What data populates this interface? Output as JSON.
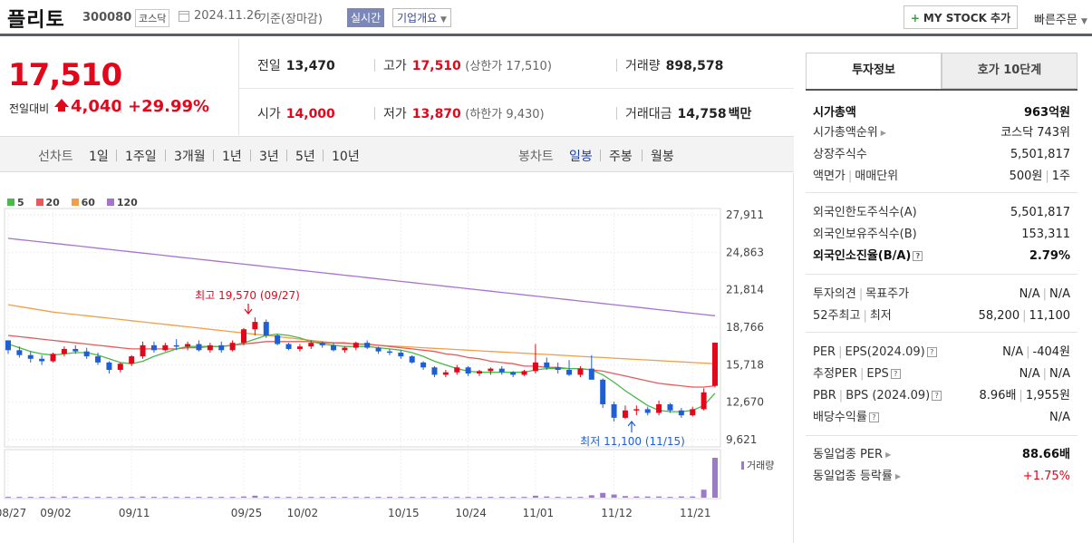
{
  "header": {
    "name": "플리토",
    "code": "300080",
    "market": "코스닥",
    "date": "2024.11.26",
    "basis": "기준(장마감)",
    "realtime_label": "실시간",
    "company_label": "기업개요",
    "mystock_label": "MY STOCK 추가",
    "quick_order_label": "빠른주문"
  },
  "price": {
    "current": "17,510",
    "change_label": "전일대비",
    "change": "4,040",
    "change_rate": "+29.99%",
    "up_color": "#e2071b"
  },
  "quote": {
    "prev_close_label": "전일",
    "prev_close": "13,470",
    "high_label": "고가",
    "high": "17,510",
    "upper_limit": "(상한가 17,510)",
    "volume_label": "거래량",
    "volume": "898,578",
    "open_label": "시가",
    "open": "14,000",
    "low_label": "저가",
    "low": "13,870",
    "lower_limit": "(하한가 9,430)",
    "amount_label": "거래대금",
    "amount": "14,758",
    "amount_unit": "백만"
  },
  "toolbar": {
    "line_label": "선차트",
    "periods": [
      "1일",
      "1주일",
      "3개월",
      "1년",
      "3년",
      "5년",
      "10년"
    ],
    "candle_label": "봉차트",
    "candle_types": [
      "일봉",
      "주봉",
      "월봉"
    ],
    "active_candle": "일봉"
  },
  "legend": [
    {
      "label": "5",
      "color": "#4ab84a"
    },
    {
      "label": "20",
      "color": "#e85a5a"
    },
    {
      "label": "60",
      "color": "#f0a04a"
    },
    {
      "label": "120",
      "color": "#a873cf"
    }
  ],
  "chart_data": {
    "type": "candlestick",
    "y_ticks": [
      "27,911",
      "24,863",
      "21,814",
      "18,766",
      "15,718",
      "12,670",
      "9,621"
    ],
    "ylim": [
      9621,
      27911
    ],
    "x_ticks": [
      "08/27",
      "09/02",
      "09/11",
      "09/25",
      "10/02",
      "10/15",
      "10/24",
      "11/01",
      "11/12",
      "11/21"
    ],
    "annotations": {
      "high_text": "최고 19,570 (09/27)",
      "low_text": "최저 11,100 (11/15)"
    },
    "volume_label": "거래량",
    "candles": [
      [
        17700,
        17700,
        16600,
        16900
      ],
      [
        16900,
        17200,
        16300,
        16500
      ],
      [
        16500,
        16800,
        15900,
        16200
      ],
      [
        16200,
        16500,
        15700,
        16000
      ],
      [
        16000,
        16700,
        15900,
        16600
      ],
      [
        16600,
        17200,
        16400,
        17000
      ],
      [
        17000,
        17300,
        16600,
        16800
      ],
      [
        16800,
        17100,
        16200,
        16400
      ],
      [
        16400,
        16700,
        15700,
        15900
      ],
      [
        15900,
        16000,
        15000,
        15300
      ],
      [
        15300,
        15900,
        15100,
        15800
      ],
      [
        15800,
        16500,
        15600,
        16400
      ],
      [
        16400,
        17600,
        16200,
        17300
      ],
      [
        17300,
        17600,
        16700,
        16900
      ],
      [
        16900,
        17500,
        16800,
        17300
      ],
      [
        17300,
        17800,
        16900,
        17200
      ],
      [
        17200,
        17600,
        16900,
        17400
      ],
      [
        17400,
        17700,
        16800,
        16900
      ],
      [
        16900,
        17500,
        16700,
        17300
      ],
      [
        17300,
        17600,
        16700,
        16900
      ],
      [
        16900,
        17700,
        16800,
        17500
      ],
      [
        17500,
        18700,
        17300,
        18600
      ],
      [
        18600,
        19570,
        18100,
        19200
      ],
      [
        19200,
        19400,
        17900,
        18100
      ],
      [
        18100,
        18200,
        17300,
        17400
      ],
      [
        17400,
        17500,
        16900,
        17000
      ],
      [
        17000,
        17400,
        16800,
        17200
      ],
      [
        17200,
        17700,
        17000,
        17500
      ],
      [
        17500,
        17600,
        17100,
        17300
      ],
      [
        17300,
        17500,
        16800,
        16900
      ],
      [
        16900,
        17200,
        16700,
        17100
      ],
      [
        17100,
        17600,
        16900,
        17500
      ],
      [
        17500,
        17700,
        17000,
        17100
      ],
      [
        17100,
        17200,
        16600,
        16800
      ],
      [
        16800,
        17000,
        16500,
        16700
      ],
      [
        16700,
        16900,
        16200,
        16400
      ],
      [
        16400,
        16500,
        15800,
        15900
      ],
      [
        15900,
        16000,
        15300,
        15500
      ],
      [
        15500,
        15600,
        14700,
        14900
      ],
      [
        14900,
        15300,
        14700,
        15100
      ],
      [
        15100,
        15700,
        14900,
        15500
      ],
      [
        15500,
        15600,
        14800,
        15000
      ],
      [
        15000,
        15300,
        14800,
        15200
      ],
      [
        15200,
        15500,
        14900,
        15400
      ],
      [
        15400,
        15600,
        14900,
        15100
      ],
      [
        15100,
        15200,
        14700,
        14900
      ],
      [
        14900,
        15300,
        14800,
        15200
      ],
      [
        15200,
        17400,
        15000,
        15900
      ],
      [
        15900,
        16300,
        15300,
        15500
      ],
      [
        15500,
        15900,
        15000,
        15300
      ],
      [
        15300,
        16100,
        14800,
        14900
      ],
      [
        14900,
        15600,
        14700,
        15400
      ],
      [
        15400,
        16500,
        14600,
        14500
      ],
      [
        14500,
        14600,
        12200,
        12500
      ],
      [
        12500,
        12700,
        11100,
        11400
      ],
      [
        11400,
        12400,
        11300,
        12000
      ],
      [
        12000,
        12400,
        11600,
        12100
      ],
      [
        12100,
        12300,
        11600,
        11800
      ],
      [
        11800,
        12800,
        11600,
        12500
      ],
      [
        12500,
        12600,
        11800,
        12000
      ],
      [
        12000,
        12200,
        11400,
        11600
      ],
      [
        11600,
        12300,
        11500,
        12100
      ],
      [
        12100,
        13800,
        12000,
        13470
      ],
      [
        14000,
        17510,
        13870,
        17510
      ]
    ],
    "ma5": [
      17400,
      17100,
      16800,
      16600,
      16500,
      16600,
      16700,
      16700,
      16500,
      16200,
      15900,
      15800,
      16000,
      16400,
      16700,
      17000,
      17200,
      17200,
      17200,
      17200,
      17300,
      17500,
      17800,
      18100,
      18200,
      18100,
      17900,
      17600,
      17400,
      17300,
      17200,
      17200,
      17200,
      17100,
      17000,
      16900,
      16700,
      16400,
      16000,
      15700,
      15400,
      15200,
      15100,
      15100,
      15100,
      15100,
      15100,
      15300,
      15400,
      15400,
      15400,
      15400,
      15300,
      14900,
      14300,
      13600,
      13000,
      12400,
      12000,
      11900,
      11900,
      12000,
      12400,
      13400
    ],
    "ma20": [
      18100,
      18000,
      17900,
      17800,
      17700,
      17600,
      17500,
      17400,
      17300,
      17200,
      17100,
      17000,
      17000,
      17000,
      17000,
      17000,
      17100,
      17100,
      17200,
      17200,
      17300,
      17400,
      17500,
      17600,
      17600,
      17600,
      17600,
      17600,
      17500,
      17500,
      17500,
      17400,
      17400,
      17300,
      17200,
      17100,
      17000,
      16900,
      16800,
      16600,
      16500,
      16300,
      16200,
      16000,
      15900,
      15800,
      15600,
      15600,
      15500,
      15500,
      15400,
      15400,
      15300,
      15200,
      15000,
      14800,
      14600,
      14400,
      14200,
      14100,
      14000,
      13900,
      13900,
      14000
    ],
    "ma60": [
      20600,
      20450,
      20300,
      20150,
      20000,
      19900,
      19800,
      19700,
      19600,
      19500,
      19400,
      19300,
      19200,
      19100,
      19000,
      18900,
      18800,
      18700,
      18600,
      18500,
      18400,
      18300,
      18200,
      18100,
      18000,
      17900,
      17800,
      17700,
      17600,
      17500,
      17450,
      17400,
      17350,
      17300,
      17250,
      17200,
      17150,
      17100,
      17050,
      17000,
      16950,
      16900,
      16850,
      16800,
      16750,
      16700,
      16650,
      16600,
      16550,
      16500,
      16450,
      16400,
      16350,
      16300,
      16250,
      16200,
      16150,
      16100,
      16050,
      16000,
      15950,
      15900,
      15850,
      15800
    ],
    "ma120": [
      26000,
      25900,
      25800,
      25700,
      25600,
      25500,
      25400,
      25300,
      25200,
      25100,
      25000,
      24900,
      24800,
      24700,
      24600,
      24500,
      24400,
      24300,
      24200,
      24100,
      24000,
      23900,
      23800,
      23700,
      23600,
      23500,
      23400,
      23300,
      23200,
      23100,
      23000,
      22900,
      22800,
      22700,
      22600,
      22500,
      22400,
      22300,
      22200,
      22100,
      22000,
      21900,
      21800,
      21700,
      21600,
      21500,
      21400,
      21300,
      21200,
      21100,
      21000,
      20900,
      20800,
      20700,
      20600,
      20500,
      20400,
      20300,
      20200,
      20100,
      20000,
      19900,
      19800,
      19700
    ],
    "volume": [
      2,
      2,
      2,
      2,
      2,
      3,
      2,
      2,
      2,
      2,
      2,
      2,
      3,
      2,
      2,
      2,
      2,
      2,
      2,
      2,
      2,
      3,
      5,
      3,
      2,
      2,
      2,
      2,
      2,
      2,
      2,
      2,
      2,
      2,
      2,
      2,
      2,
      2,
      2,
      2,
      2,
      2,
      2,
      2,
      2,
      2,
      2,
      5,
      3,
      2,
      2,
      2,
      6,
      12,
      8,
      4,
      3,
      3,
      3,
      2,
      3,
      3,
      20,
      100
    ]
  },
  "right_panel": {
    "tabs": [
      "투자정보",
      "호가 10단계"
    ],
    "active_tab": "투자정보",
    "rows": {
      "market_cap_label": "시가총액",
      "market_cap": "963억원",
      "market_cap_rank_label": "시가총액순위",
      "market_cap_rank": "코스닥 743위",
      "listed_shares_label": "상장주식수",
      "listed_shares": "5,501,817",
      "face_value_label": "액면가",
      "trade_unit_label": "매매단위",
      "face_value": "500원",
      "trade_unit": "1주",
      "foreign_limit_label": "외국인한도주식수(A)",
      "foreign_limit": "5,501,817",
      "foreign_holding_label": "외국인보유주식수(B)",
      "foreign_holding": "153,311",
      "foreign_ratio_label": "외국인소진율(B/A)",
      "foreign_ratio": "2.79%",
      "opinion_label": "투자의견",
      "target_label": "목표주가",
      "opinion": "N/A",
      "target": "N/A",
      "w52_high_label": "52주최고",
      "w52_low_label": "최저",
      "w52_high": "58,200",
      "w52_low": "11,100",
      "per_label": "PER",
      "eps_label": "EPS(2024.09)",
      "per": "N/A",
      "eps": "-404원",
      "est_per_label": "추정PER",
      "est_eps_label": "EPS",
      "est_per": "N/A",
      "est_eps": "N/A",
      "pbr_label": "PBR",
      "bps_label": "BPS (2024.09)",
      "pbr": "8.96배",
      "bps": "1,955원",
      "dividend_label": "배당수익률",
      "dividend": "N/A",
      "sector_per_label": "동일업종 PER",
      "sector_per": "88.66배",
      "sector_chg_label": "동일업종 등락률",
      "sector_chg": "+1.75%"
    }
  }
}
